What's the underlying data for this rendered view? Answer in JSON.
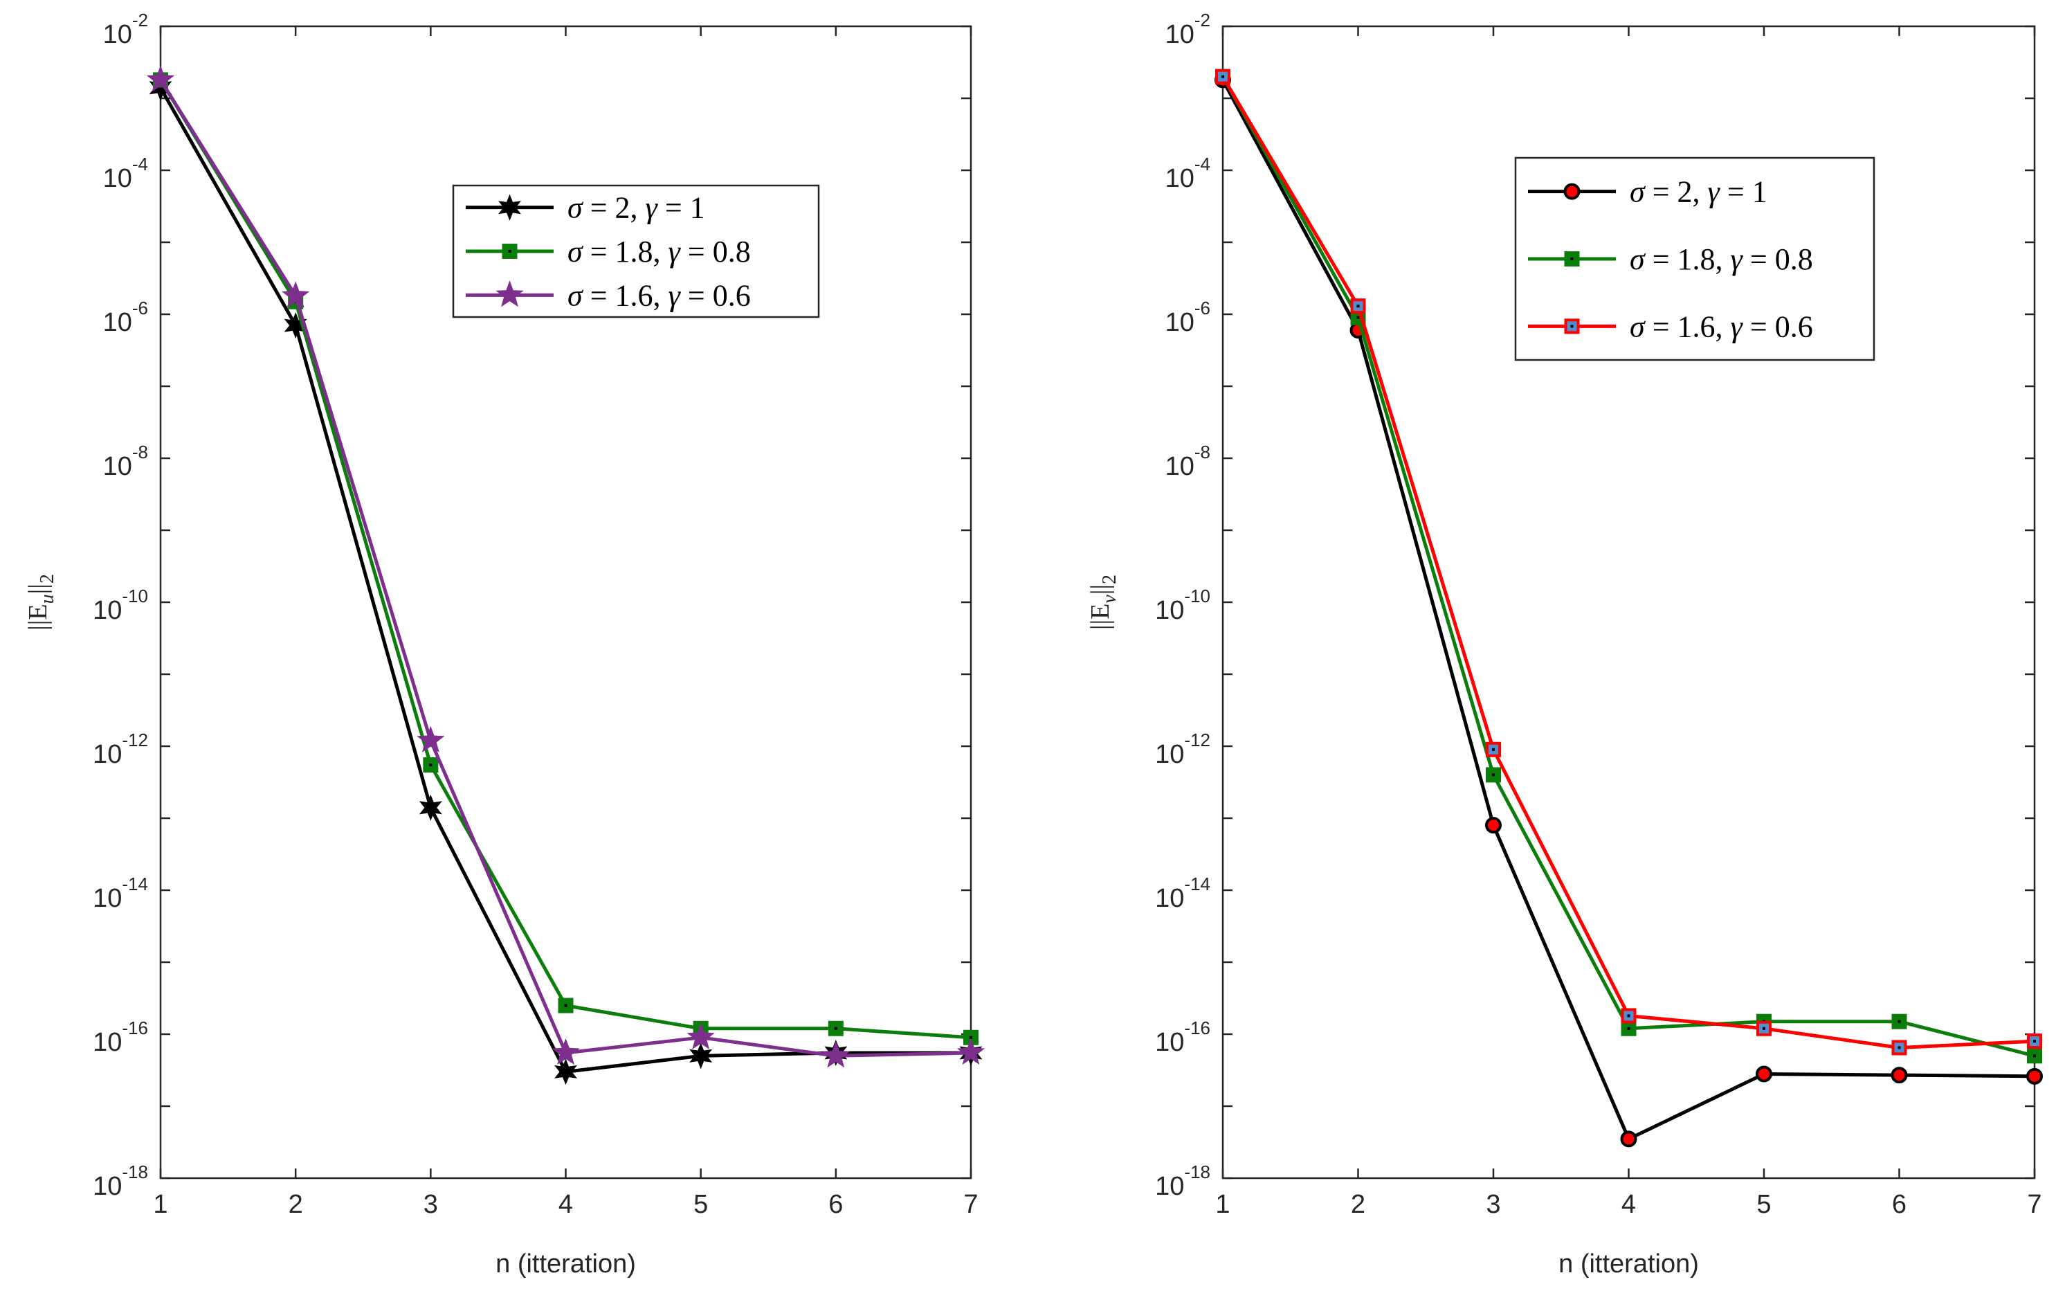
{
  "chart_data": [
    {
      "type": "line",
      "ylabel": "||E_u||_2",
      "ylabel_parts": [
        "||E",
        "u",
        "||",
        "2"
      ],
      "xlabel": "n (itteration)",
      "yscale": "log",
      "xlim": [
        1,
        7
      ],
      "ylim_exp": [
        -18,
        -2
      ],
      "x_ticks": [
        "1",
        "2",
        "3",
        "4",
        "5",
        "6",
        "7"
      ],
      "y_ticks": [
        {
          "base": "10",
          "exp": "-2"
        },
        {
          "base": "10",
          "exp": "-4"
        },
        {
          "base": "10",
          "exp": "-6"
        },
        {
          "base": "10",
          "exp": "-8"
        },
        {
          "base": "10",
          "exp": "-10"
        },
        {
          "base": "10",
          "exp": "-12"
        },
        {
          "base": "10",
          "exp": "-14"
        },
        {
          "base": "10",
          "exp": "-16"
        },
        {
          "base": "10",
          "exp": "-18"
        }
      ],
      "legend_location": "upper-right",
      "x": [
        1,
        2,
        3,
        4,
        5,
        6,
        7
      ],
      "series": [
        {
          "name": "σ = 2, γ = 1",
          "color": "#000000",
          "marker": "hexagram",
          "values": [
            0.0014,
            7e-07,
            1.4e-13,
            3e-17,
            5e-17,
            5.5e-17,
            5.5e-17
          ]
        },
        {
          "name": "σ = 1.8, γ = 0.8",
          "color": "#0b7d0b",
          "marker": "square",
          "values": [
            0.0018,
            1.5e-06,
            5.5e-13,
            2.5e-16,
            1.2e-16,
            1.2e-16,
            9e-17
          ]
        },
        {
          "name": "σ = 1.6, γ = 0.6",
          "color": "#7e2f8e",
          "marker": "pentagram",
          "values": [
            0.0018,
            1.8e-06,
            1.2e-12,
            5.5e-17,
            9e-17,
            5e-17,
            5.5e-17
          ]
        }
      ]
    },
    {
      "type": "line",
      "ylabel": "||E_v||_2",
      "ylabel_parts": [
        "||E",
        "v",
        "||",
        "2"
      ],
      "xlabel": "n (itteration)",
      "yscale": "log",
      "xlim": [
        1,
        7
      ],
      "ylim_exp": [
        -18,
        -2
      ],
      "x_ticks": [
        "1",
        "2",
        "3",
        "4",
        "5",
        "6",
        "7"
      ],
      "y_ticks": [
        {
          "base": "10",
          "exp": "-2"
        },
        {
          "base": "10",
          "exp": "-4"
        },
        {
          "base": "10",
          "exp": "-6"
        },
        {
          "base": "10",
          "exp": "-8"
        },
        {
          "base": "10",
          "exp": "-10"
        },
        {
          "base": "10",
          "exp": "-12"
        },
        {
          "base": "10",
          "exp": "-14"
        },
        {
          "base": "10",
          "exp": "-16"
        },
        {
          "base": "10",
          "exp": "-18"
        }
      ],
      "legend_location": "upper-right",
      "x": [
        1,
        2,
        3,
        4,
        5,
        6,
        7
      ],
      "series": [
        {
          "name": "σ = 2, γ = 1",
          "color": "#000000",
          "marker": "circle",
          "marker_face": "#ff0000",
          "values": [
            0.0018,
            6e-07,
            8e-14,
            3.5e-18,
            2.8e-17,
            2.7e-17,
            2.6e-17
          ]
        },
        {
          "name": "σ = 1.8, γ = 0.8",
          "color": "#0b7d0b",
          "marker": "square",
          "marker_face": "#0b7d0b",
          "values": [
            0.002,
            9e-07,
            4e-13,
            1.2e-16,
            1.5e-16,
            1.5e-16,
            5e-17
          ]
        },
        {
          "name": "σ = 1.6, γ = 0.6",
          "color": "#ff0000",
          "marker": "square",
          "marker_face": "#4f8fd0",
          "values": [
            0.002,
            1.3e-06,
            9e-13,
            1.8e-16,
            1.2e-16,
            6.5e-17,
            8e-17
          ]
        }
      ]
    }
  ]
}
